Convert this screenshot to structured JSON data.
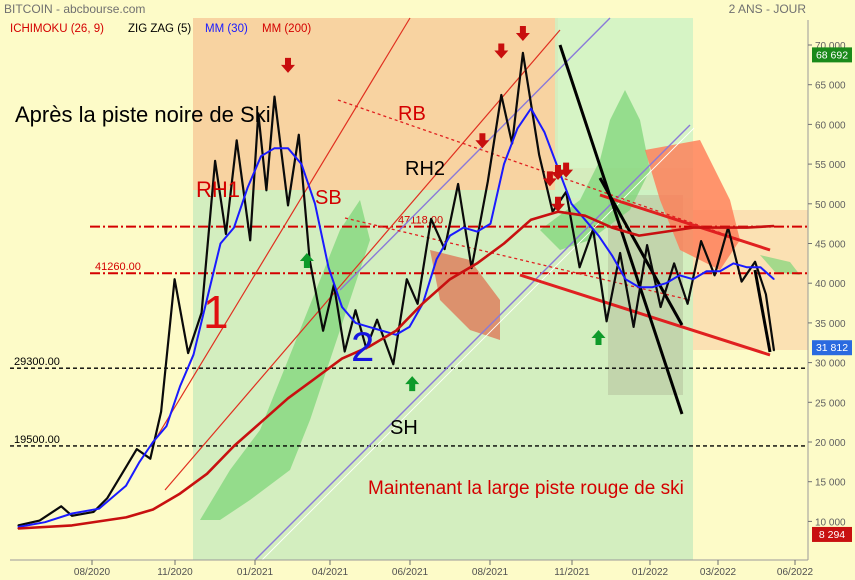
{
  "header": {
    "source": "BITCOIN - abcbourse.com",
    "period": "2 ANS - JOUR",
    "legend": [
      {
        "label": "ICHIMOKU (26, 9)",
        "color": "#d40000"
      },
      {
        "label": "ZIG ZAG (5)",
        "color": "#000000"
      },
      {
        "label": "MM (30)",
        "color": "#1a1aff"
      },
      {
        "label": "MM (200)",
        "color": "#d40000"
      }
    ]
  },
  "chart_data": {
    "type": "line",
    "title": "",
    "xlabel": "",
    "ylabel": "",
    "ylim": [
      8000,
      72000
    ],
    "y_ticks": [
      "70 000",
      "65 000",
      "60 000",
      "55 000",
      "50 000",
      "45 000",
      "40 000",
      "35 000",
      "30 000",
      "25 000",
      "20 000",
      "15 000",
      "10 000"
    ],
    "x_ticks": [
      "08/2020",
      "11/2020",
      "01/2021",
      "04/2021",
      "06/2021",
      "08/2021",
      "11/2021",
      "01/2022",
      "03/2022",
      "06/2022"
    ],
    "badges": [
      {
        "label": "68 692",
        "value": 68692,
        "color": "#1a8a1a"
      },
      {
        "label": "31 812",
        "value": 31812,
        "color": "#2a6ae0"
      },
      {
        "label": "8 294",
        "value": 8294,
        "color": "#c81010"
      }
    ],
    "levels": [
      {
        "label": "41260.00",
        "value": 41260,
        "color": "#d40000",
        "style": "dashdot"
      },
      {
        "label": "47118.00",
        "value": 47118,
        "color": "#d40000",
        "style": "dashdot"
      },
      {
        "label": "29300.00",
        "value": 29300,
        "color": "#000000",
        "style": "dashed"
      },
      {
        "label": "19500.00",
        "value": 19500,
        "color": "#000000",
        "style": "dashed"
      }
    ],
    "series": [
      {
        "name": "ZIG ZAG (5)",
        "color": "#0a0a0a",
        "points": [
          [
            0,
            9500
          ],
          [
            0.8,
            10100
          ],
          [
            1.6,
            11900
          ],
          [
            2.0,
            10700
          ],
          [
            2.8,
            11200
          ],
          [
            3.3,
            12900
          ],
          [
            4.4,
            19100
          ],
          [
            4.9,
            17900
          ],
          [
            5.3,
            23800
          ],
          [
            5.8,
            40500
          ],
          [
            6.3,
            31200
          ],
          [
            6.8,
            36300
          ],
          [
            7.3,
            55400
          ],
          [
            7.7,
            46200
          ],
          [
            8.1,
            58000
          ],
          [
            8.6,
            45400
          ],
          [
            8.9,
            61400
          ],
          [
            9.2,
            51700
          ],
          [
            9.5,
            63500
          ],
          [
            10.0,
            49800
          ],
          [
            10.4,
            58700
          ],
          [
            10.8,
            43000
          ],
          [
            11.3,
            34000
          ],
          [
            11.7,
            39800
          ],
          [
            12.1,
            31400
          ],
          [
            12.5,
            36600
          ],
          [
            12.9,
            31800
          ],
          [
            13.3,
            35400
          ],
          [
            13.9,
            29800
          ],
          [
            14.4,
            40500
          ],
          [
            14.8,
            37400
          ],
          [
            15.3,
            48100
          ],
          [
            15.8,
            44300
          ],
          [
            16.3,
            52500
          ],
          [
            16.8,
            41900
          ],
          [
            17.4,
            52800
          ],
          [
            17.9,
            63700
          ],
          [
            18.3,
            57600
          ],
          [
            18.7,
            69000
          ],
          [
            19.3,
            56200
          ],
          [
            19.8,
            49000
          ],
          [
            20.3,
            51500
          ],
          [
            20.8,
            42000
          ],
          [
            21.3,
            46800
          ],
          [
            21.8,
            35200
          ],
          [
            22.3,
            43800
          ],
          [
            22.8,
            34500
          ],
          [
            23.3,
            44800
          ],
          [
            23.8,
            37000
          ],
          [
            24.3,
            42500
          ],
          [
            24.8,
            37400
          ],
          [
            25.3,
            45300
          ],
          [
            25.8,
            41000
          ],
          [
            26.3,
            47000
          ],
          [
            26.8,
            40200
          ],
          [
            27.3,
            42700
          ],
          [
            27.7,
            38600
          ],
          [
            28.0,
            31500
          ]
        ]
      },
      {
        "name": "MM (30)",
        "color": "#1a1aff",
        "points": [
          [
            0,
            9300
          ],
          [
            1,
            9900
          ],
          [
            2,
            11000
          ],
          [
            3,
            11600
          ],
          [
            4,
            14500
          ],
          [
            4.5,
            17500
          ],
          [
            5,
            20000
          ],
          [
            5.5,
            22000
          ],
          [
            6,
            27000
          ],
          [
            6.5,
            31000
          ],
          [
            7,
            38000
          ],
          [
            7.5,
            45000
          ],
          [
            8,
            47000
          ],
          [
            8.5,
            52000
          ],
          [
            9,
            56000
          ],
          [
            9.5,
            57000
          ],
          [
            10,
            57000
          ],
          [
            10.5,
            55000
          ],
          [
            11,
            50000
          ],
          [
            11.5,
            42000
          ],
          [
            12,
            37000
          ],
          [
            12.5,
            35000
          ],
          [
            13,
            34500
          ],
          [
            13.5,
            34000
          ],
          [
            14,
            33500
          ],
          [
            14.5,
            34500
          ],
          [
            15,
            37500
          ],
          [
            15.5,
            43000
          ],
          [
            16,
            46000
          ],
          [
            16.5,
            47000
          ],
          [
            17,
            46500
          ],
          [
            17.5,
            47500
          ],
          [
            18,
            55000
          ],
          [
            18.5,
            59500
          ],
          [
            19,
            62000
          ],
          [
            19.5,
            59000
          ],
          [
            20,
            54500
          ],
          [
            20.5,
            50000
          ],
          [
            21,
            48000
          ],
          [
            21.5,
            46000
          ],
          [
            22,
            43500
          ],
          [
            22.5,
            40500
          ],
          [
            23,
            39500
          ],
          [
            23.5,
            39500
          ],
          [
            24,
            40000
          ],
          [
            24.5,
            41000
          ],
          [
            25,
            40500
          ],
          [
            25.5,
            41500
          ],
          [
            26,
            41500
          ],
          [
            26.5,
            42500
          ],
          [
            27,
            42000
          ],
          [
            27.5,
            42000
          ],
          [
            28,
            40500
          ]
        ]
      },
      {
        "name": "MM (200)",
        "color": "#c81010",
        "points": [
          [
            0,
            9100
          ],
          [
            2,
            9500
          ],
          [
            4,
            10500
          ],
          [
            5,
            11500
          ],
          [
            6,
            13500
          ],
          [
            7,
            16000
          ],
          [
            8,
            19500
          ],
          [
            9,
            22500
          ],
          [
            10,
            25500
          ],
          [
            11,
            28000
          ],
          [
            12,
            30500
          ],
          [
            13,
            32000
          ],
          [
            14,
            34000
          ],
          [
            15,
            37500
          ],
          [
            16,
            40500
          ],
          [
            17,
            42500
          ],
          [
            18,
            45000
          ],
          [
            19,
            48000
          ],
          [
            20,
            49000
          ],
          [
            21,
            48500
          ],
          [
            22,
            47000
          ],
          [
            23,
            46000
          ],
          [
            24,
            46500
          ],
          [
            25,
            47000
          ],
          [
            26,
            47000
          ],
          [
            27,
            47000
          ],
          [
            28,
            47200
          ]
        ]
      }
    ],
    "annotations": [
      {
        "text": "Après la piste noire de Ski",
        "color": "#000000"
      },
      {
        "text": "RB",
        "color": "#d40000"
      },
      {
        "text": "RH2",
        "color": "#000000"
      },
      {
        "text": "RH1",
        "color": "#d40000"
      },
      {
        "text": "SB",
        "color": "#d40000"
      },
      {
        "text": "1",
        "color": "#e01010"
      },
      {
        "text": "2",
        "color": "#1515e0"
      },
      {
        "text": "SH",
        "color": "#000000"
      },
      {
        "text": "Maintenant la large piste rouge de ski",
        "color": "#d40000"
      }
    ],
    "arrows": [
      {
        "dir": "down",
        "x": 10.0,
        "y": 67000
      },
      {
        "dir": "down",
        "x": 17.9,
        "y": 68800
      },
      {
        "dir": "down",
        "x": 18.7,
        "y": 71000
      },
      {
        "dir": "down",
        "x": 17.2,
        "y": 57500
      },
      {
        "dir": "down",
        "x": 19.7,
        "y": 52700
      },
      {
        "dir": "down",
        "x": 20.0,
        "y": 53500
      },
      {
        "dir": "down",
        "x": 20.3,
        "y": 53800
      },
      {
        "dir": "down",
        "x": 20.0,
        "y": 49500
      },
      {
        "dir": "up",
        "x": 10.7,
        "y": 43300
      },
      {
        "dir": "up",
        "x": 14.6,
        "y": 27800
      },
      {
        "dir": "up",
        "x": 21.5,
        "y": 33600
      }
    ]
  }
}
